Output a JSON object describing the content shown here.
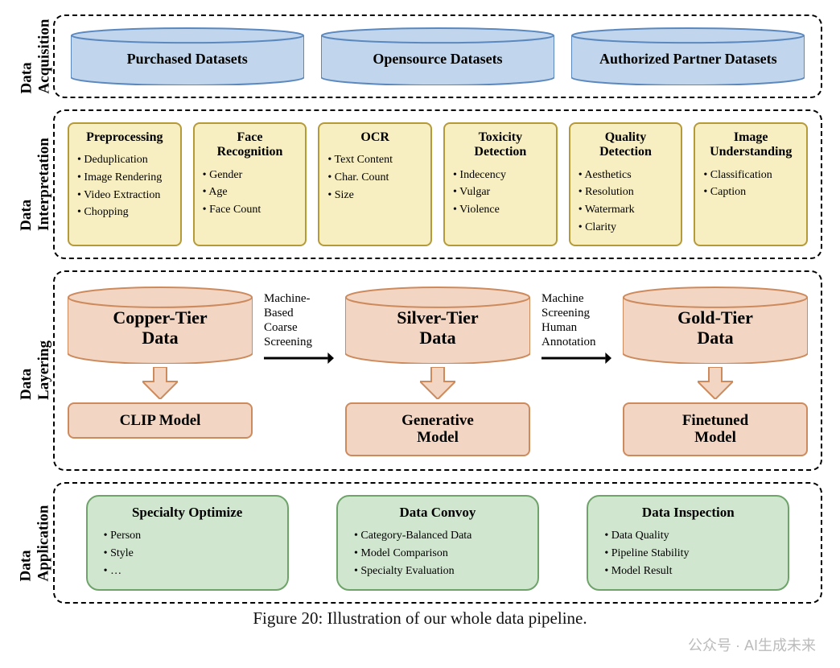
{
  "figure": {
    "caption": "Figure 20: Illustration of our whole data pipeline.",
    "watermark": "公众号 · AI生成未来"
  },
  "colors": {
    "blue_fill": "#c1d6ec",
    "blue_stroke": "#5b88be",
    "yellow_fill": "#f7efc2",
    "yellow_stroke": "#b59a3a",
    "orange_fill": "#f2d6c3",
    "orange_stroke": "#cd8a5d",
    "green_fill": "#d0e6cf",
    "green_stroke": "#6ea36a",
    "dash_stroke": "#000000",
    "arrow": "#000000"
  },
  "rows": {
    "acquisition": {
      "label": "Data\nAcquisition",
      "cylinders": [
        {
          "label": "Purchased Datasets"
        },
        {
          "label": "Opensource Datasets"
        },
        {
          "label": "Authorized Partner Datasets"
        }
      ]
    },
    "interpretation": {
      "label": "Data\nInterpretation",
      "boxes": [
        {
          "title": "Preprocessing",
          "items": [
            "Deduplication",
            "Image Rendering",
            "Video Extraction",
            "Chopping"
          ]
        },
        {
          "title": "Face Recognition",
          "items": [
            "Gender",
            "Age",
            "Face Count"
          ]
        },
        {
          "title": "OCR",
          "items": [
            "Text Content",
            "Char. Count",
            "Size"
          ]
        },
        {
          "title": "Toxicity Detection",
          "items": [
            "Indecency",
            "Vulgar",
            "Violence"
          ]
        },
        {
          "title": "Quality Detection",
          "items": [
            "Aesthetics",
            "Resolution",
            "Watermark",
            "Clarity"
          ]
        },
        {
          "title": "Image Understanding",
          "items": [
            "Classification",
            "Caption"
          ]
        }
      ]
    },
    "layering": {
      "label": "Data\nLayering",
      "tiers": [
        {
          "cyl": "Copper-Tier\nData",
          "model": "CLIP Model"
        },
        {
          "cyl": "Silver-Tier\nData",
          "model": "Generative\nModel"
        },
        {
          "cyl": "Gold-Tier\nData",
          "model": "Finetuned\nModel"
        }
      ],
      "arrows": [
        {
          "text": "Machine-Based\nCoarse Screening"
        },
        {
          "text": "Machine Screening\nHuman Annotation"
        }
      ]
    },
    "application": {
      "label": "Data\nApplication",
      "boxes": [
        {
          "title": "Specialty Optimize",
          "items": [
            "Person",
            "Style",
            "…"
          ]
        },
        {
          "title": "Data Convoy",
          "items": [
            "Category-Balanced Data",
            "Model Comparison",
            "Specialty Evaluation"
          ]
        },
        {
          "title": "Data Inspection",
          "items": [
            "Data Quality",
            "Pipeline Stability",
            "Model Result"
          ]
        }
      ]
    }
  }
}
